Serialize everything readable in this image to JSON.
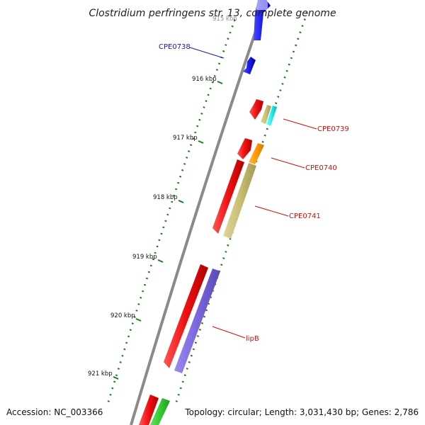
{
  "title": "Clostridium perfringens str. 13, complete genome",
  "top_tick_partial": "915 kbp",
  "accession": "Accession: NC_003366",
  "summary": "Topology: circular; Length: 3,031,430 bp; Genes: 2,786",
  "tick_labels": [
    "916 kbp",
    "917 kbp",
    "918 kbp",
    "919 kbp",
    "920 kbp",
    "921 kbp"
  ],
  "gene_labels": {
    "cpe0738": "CPE0738",
    "cpe0739": "CPE0739",
    "cpe0740": "CPE0740",
    "cpe0741": "CPE0741",
    "lipb": "lipB"
  },
  "colors": {
    "backbone": "#8a8a8a",
    "tick": "#1e7a1e",
    "forward_gene": "#1a1aee",
    "reverse_gene": "#ee1010",
    "label_blue": "#1a1aaa",
    "label_red": "#cc1111",
    "orange": "#ff9900",
    "khaki": "#c8bf74",
    "cyan": "#22eeee",
    "purple": "#7a66dd",
    "green": "#33cc33"
  }
}
